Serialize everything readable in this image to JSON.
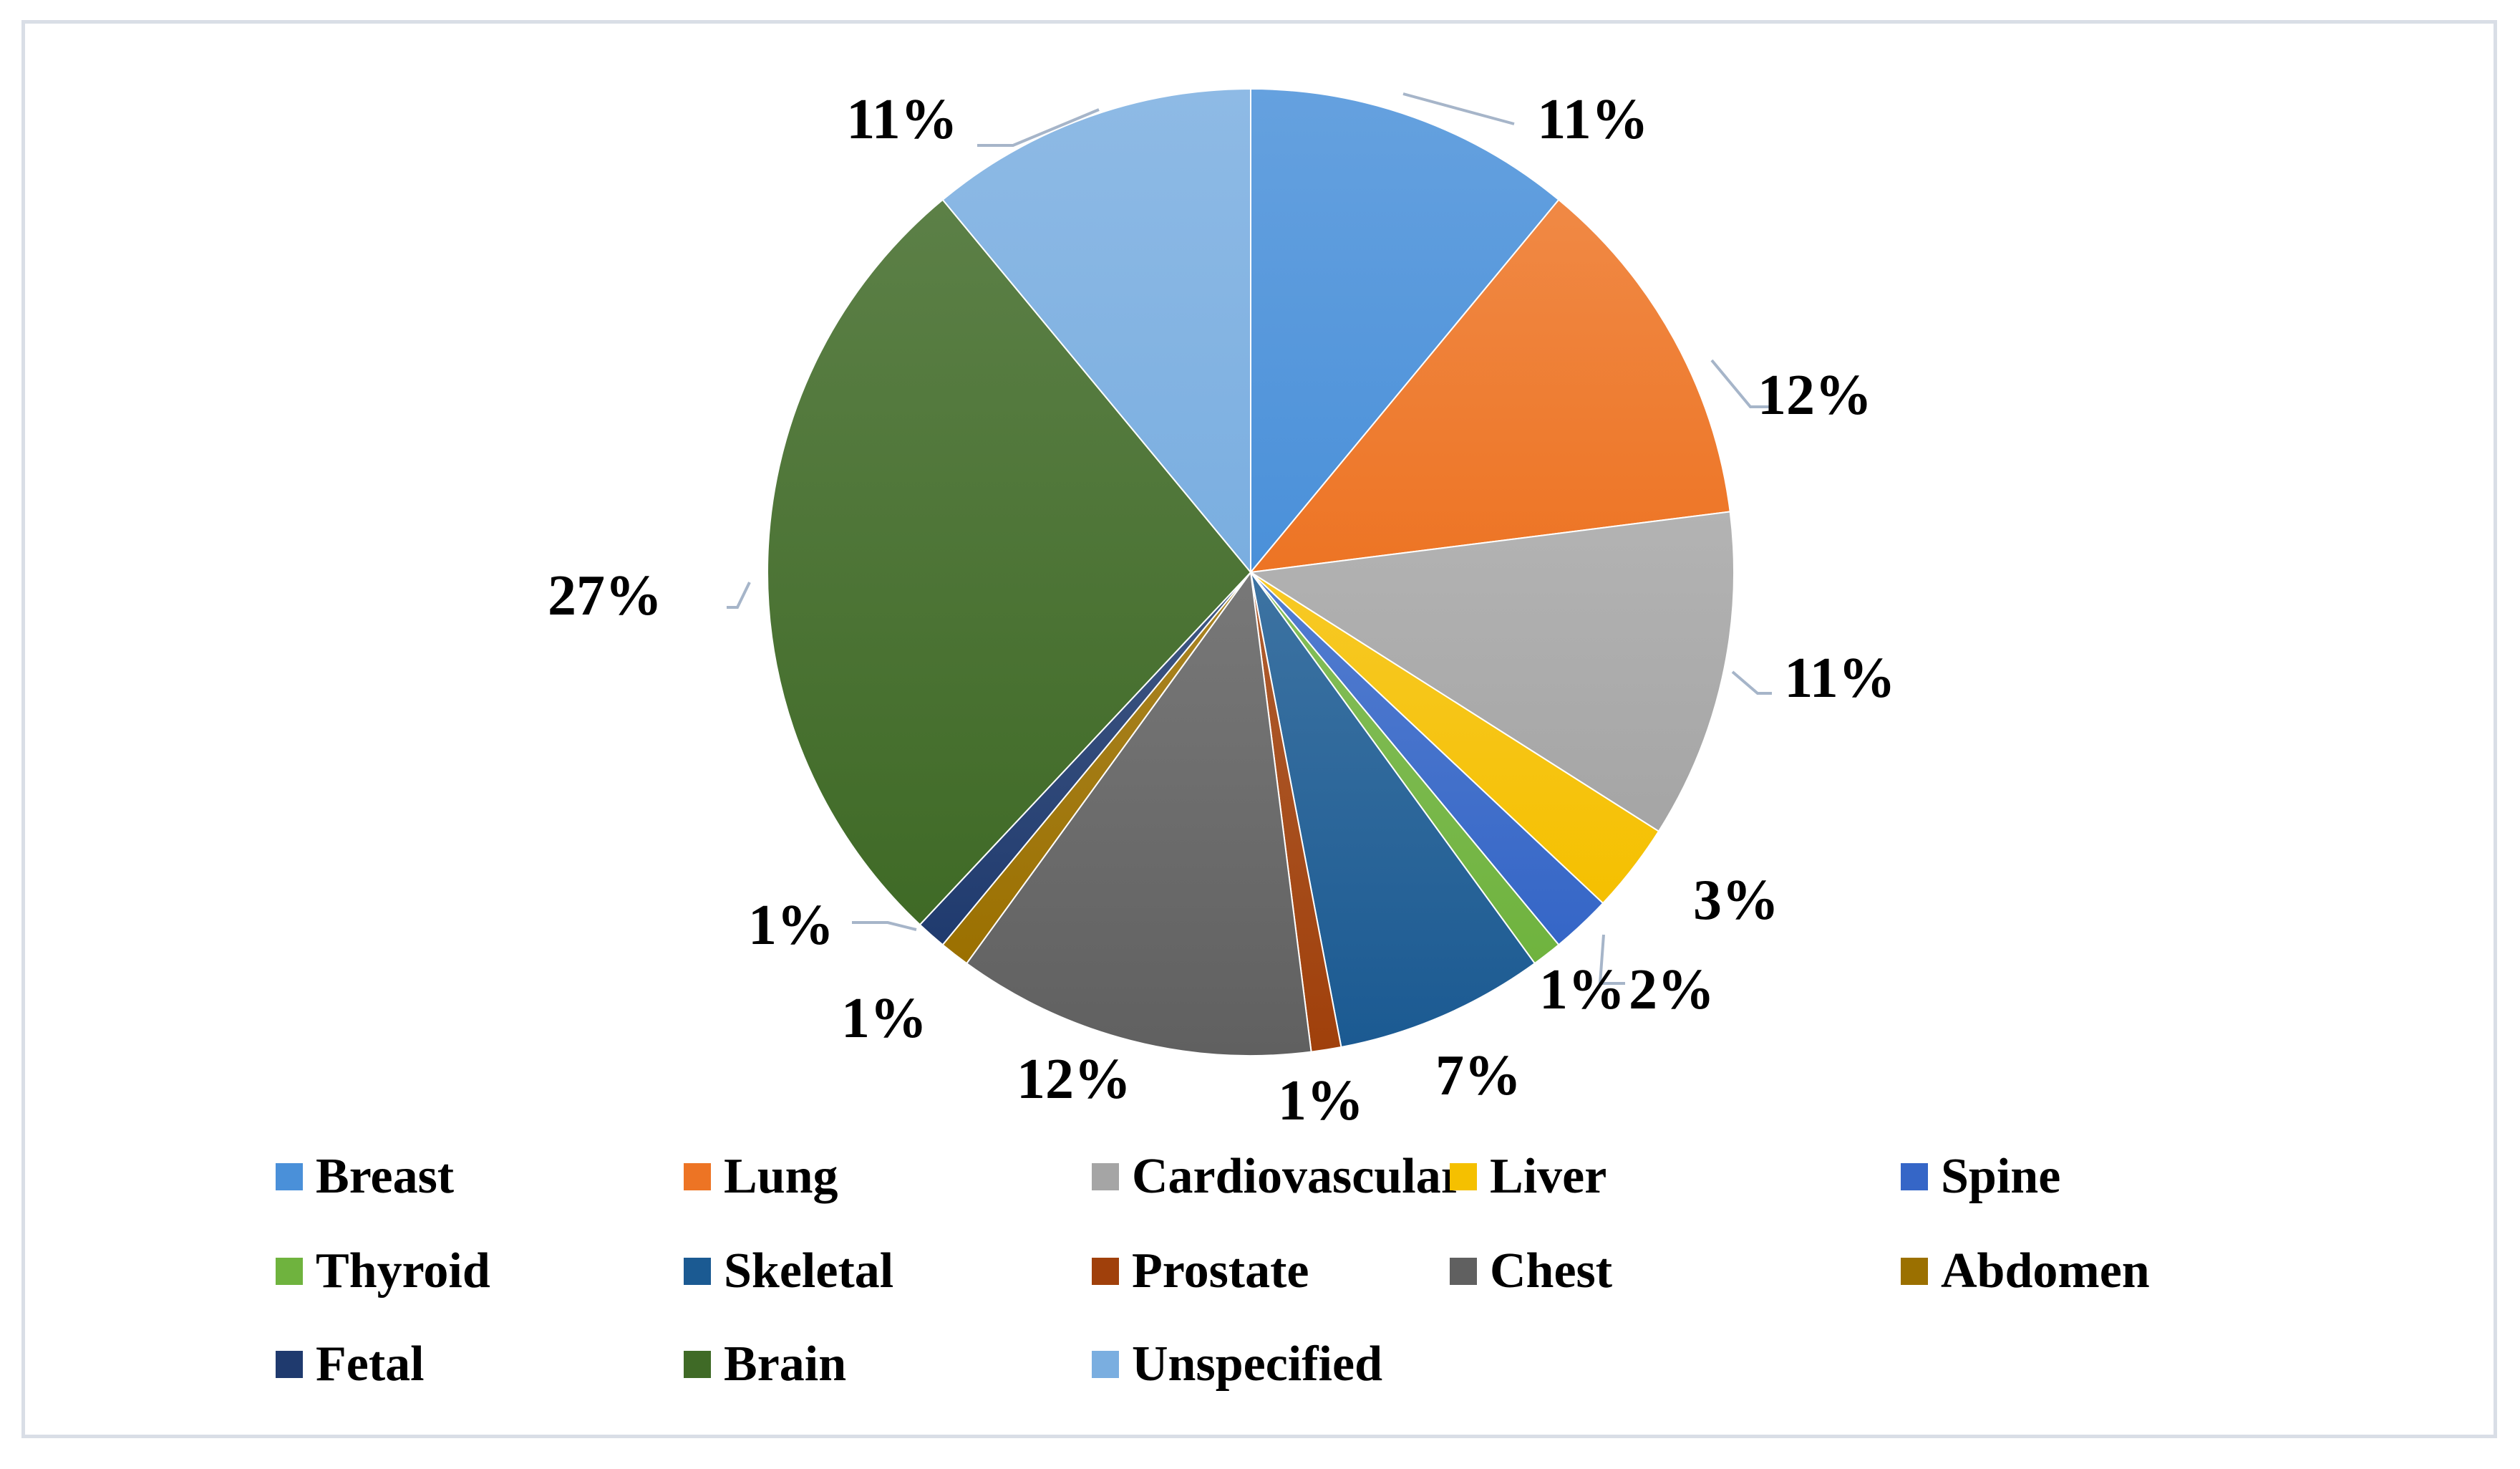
{
  "chart_data": {
    "type": "pie",
    "categories": [
      "Breast",
      "Lung",
      "Cardiovascular",
      "Liver",
      "Spine",
      "Thyroid",
      "Skeletal",
      "Prostate",
      "Chest",
      "Abdomen",
      "Fetal",
      "Brain",
      "Unspecified"
    ],
    "values": [
      11,
      12,
      11,
      3,
      2,
      1,
      7,
      1,
      12,
      1,
      1,
      27,
      11
    ],
    "data_labels": [
      "11%",
      "12%",
      "11%",
      "3%",
      "2%",
      "1%",
      "7%",
      "1%",
      "12%",
      "1%",
      "1%",
      "27%",
      "11%"
    ],
    "colors": [
      "#4a90d9",
      "#ed7424",
      "#a5a5a5",
      "#f5c000",
      "#3566c7",
      "#6fb33e",
      "#1b5a92",
      "#a0400b",
      "#606060",
      "#9b7000",
      "#1f3a6e",
      "#3f6a26",
      "#7aaee0"
    ],
    "legend_position": "bottom",
    "title": ""
  }
}
